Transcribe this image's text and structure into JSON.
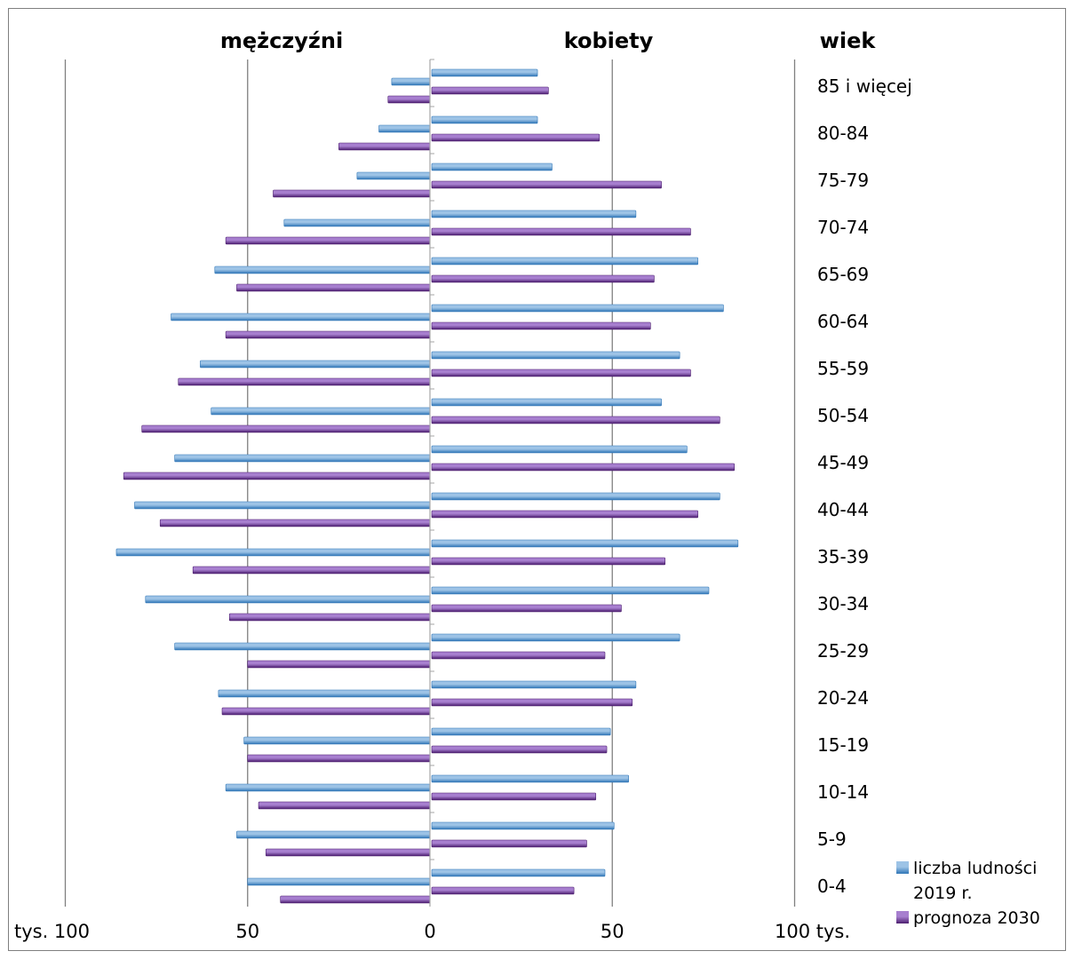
{
  "colors": {
    "series_2019": "#5b9bd5",
    "series_2019_dark": "#2e75b6",
    "series_2030": "#7030a0",
    "series_2030_dark": "#4b1d6e",
    "grid": "#808080"
  },
  "chart_data": {
    "type": "bar",
    "orientation": "horizontal-population-pyramid",
    "headers": {
      "left": "mężczyźni",
      "right": "kobiety",
      "age": "wiek"
    },
    "x_ticks": [
      "tys. 100",
      "50",
      "0",
      "50",
      "100 tys."
    ],
    "xlim": [
      -100,
      100
    ],
    "grid": true,
    "legend_position": "bottom-right",
    "categories": [
      "85 i więcej",
      "80-84",
      "75-79",
      "70-74",
      "65-69",
      "60-64",
      "55-59",
      "50-54",
      "45-49",
      "40-44",
      "35-39",
      "30-34",
      "25-29",
      "20-24",
      "15-19",
      "10-14",
      "5-9",
      "0-4"
    ],
    "series": [
      {
        "name_line1": "liczba ludności",
        "name_line2": "2019 r.",
        "men": [
          10.5,
          14,
          20,
          40,
          59,
          71,
          63,
          60,
          70,
          81,
          86,
          78,
          70,
          58,
          51,
          56,
          53,
          50
        ],
        "women": [
          29,
          29,
          33,
          56,
          73,
          80,
          68,
          63,
          70,
          79,
          84,
          76,
          68,
          56,
          49,
          54,
          50,
          47.5
        ]
      },
      {
        "name": "prognoza 2030",
        "men": [
          11.5,
          25,
          43,
          56,
          53,
          56,
          69,
          79,
          84,
          74,
          65,
          55,
          50,
          57,
          50,
          47,
          45,
          41
        ],
        "women": [
          32,
          46,
          63,
          71,
          61,
          60,
          71,
          79,
          83,
          73,
          64,
          52,
          47.5,
          55,
          48,
          45,
          42.5,
          39
        ]
      }
    ]
  }
}
